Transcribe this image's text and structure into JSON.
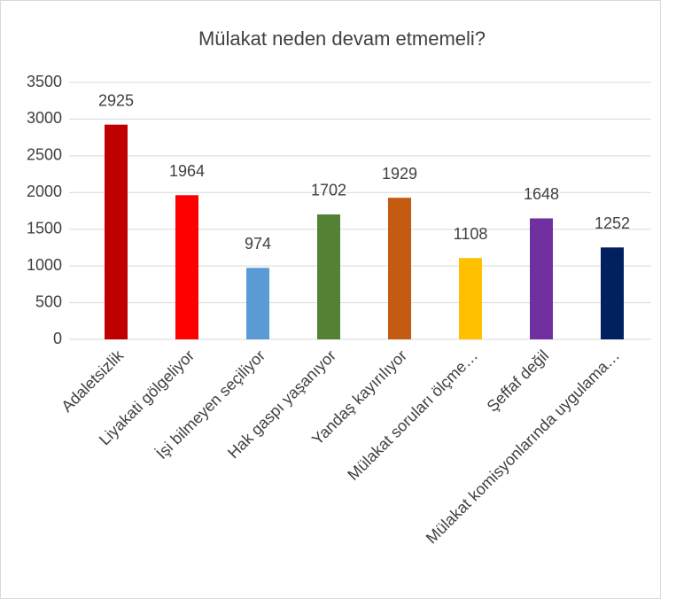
{
  "chart_data": {
    "type": "bar",
    "title": "Mülakat neden devam etmemeli?",
    "categories": [
      "Adaletsizlik",
      "Liyakati gölgeliyor",
      "İşi bilmeyen seçiliyor",
      "Hak gaspı yaşanıyor",
      "Yandaş kayırılıyor",
      "Mülakat soruları ölçme…",
      "Şeffaf değil",
      "Mülakat komisyonlarında uygulama…"
    ],
    "values": [
      2925,
      1964,
      974,
      1702,
      1929,
      1108,
      1648,
      1252
    ],
    "colors": [
      "#c00000",
      "#ff0000",
      "#5b9bd5",
      "#548235",
      "#c55a11",
      "#ffc000",
      "#7030a0",
      "#002060"
    ],
    "ylim": [
      0,
      3500
    ],
    "yticks": [
      0,
      500,
      1000,
      1500,
      2000,
      2500,
      3000,
      3500
    ],
    "grid": true
  }
}
